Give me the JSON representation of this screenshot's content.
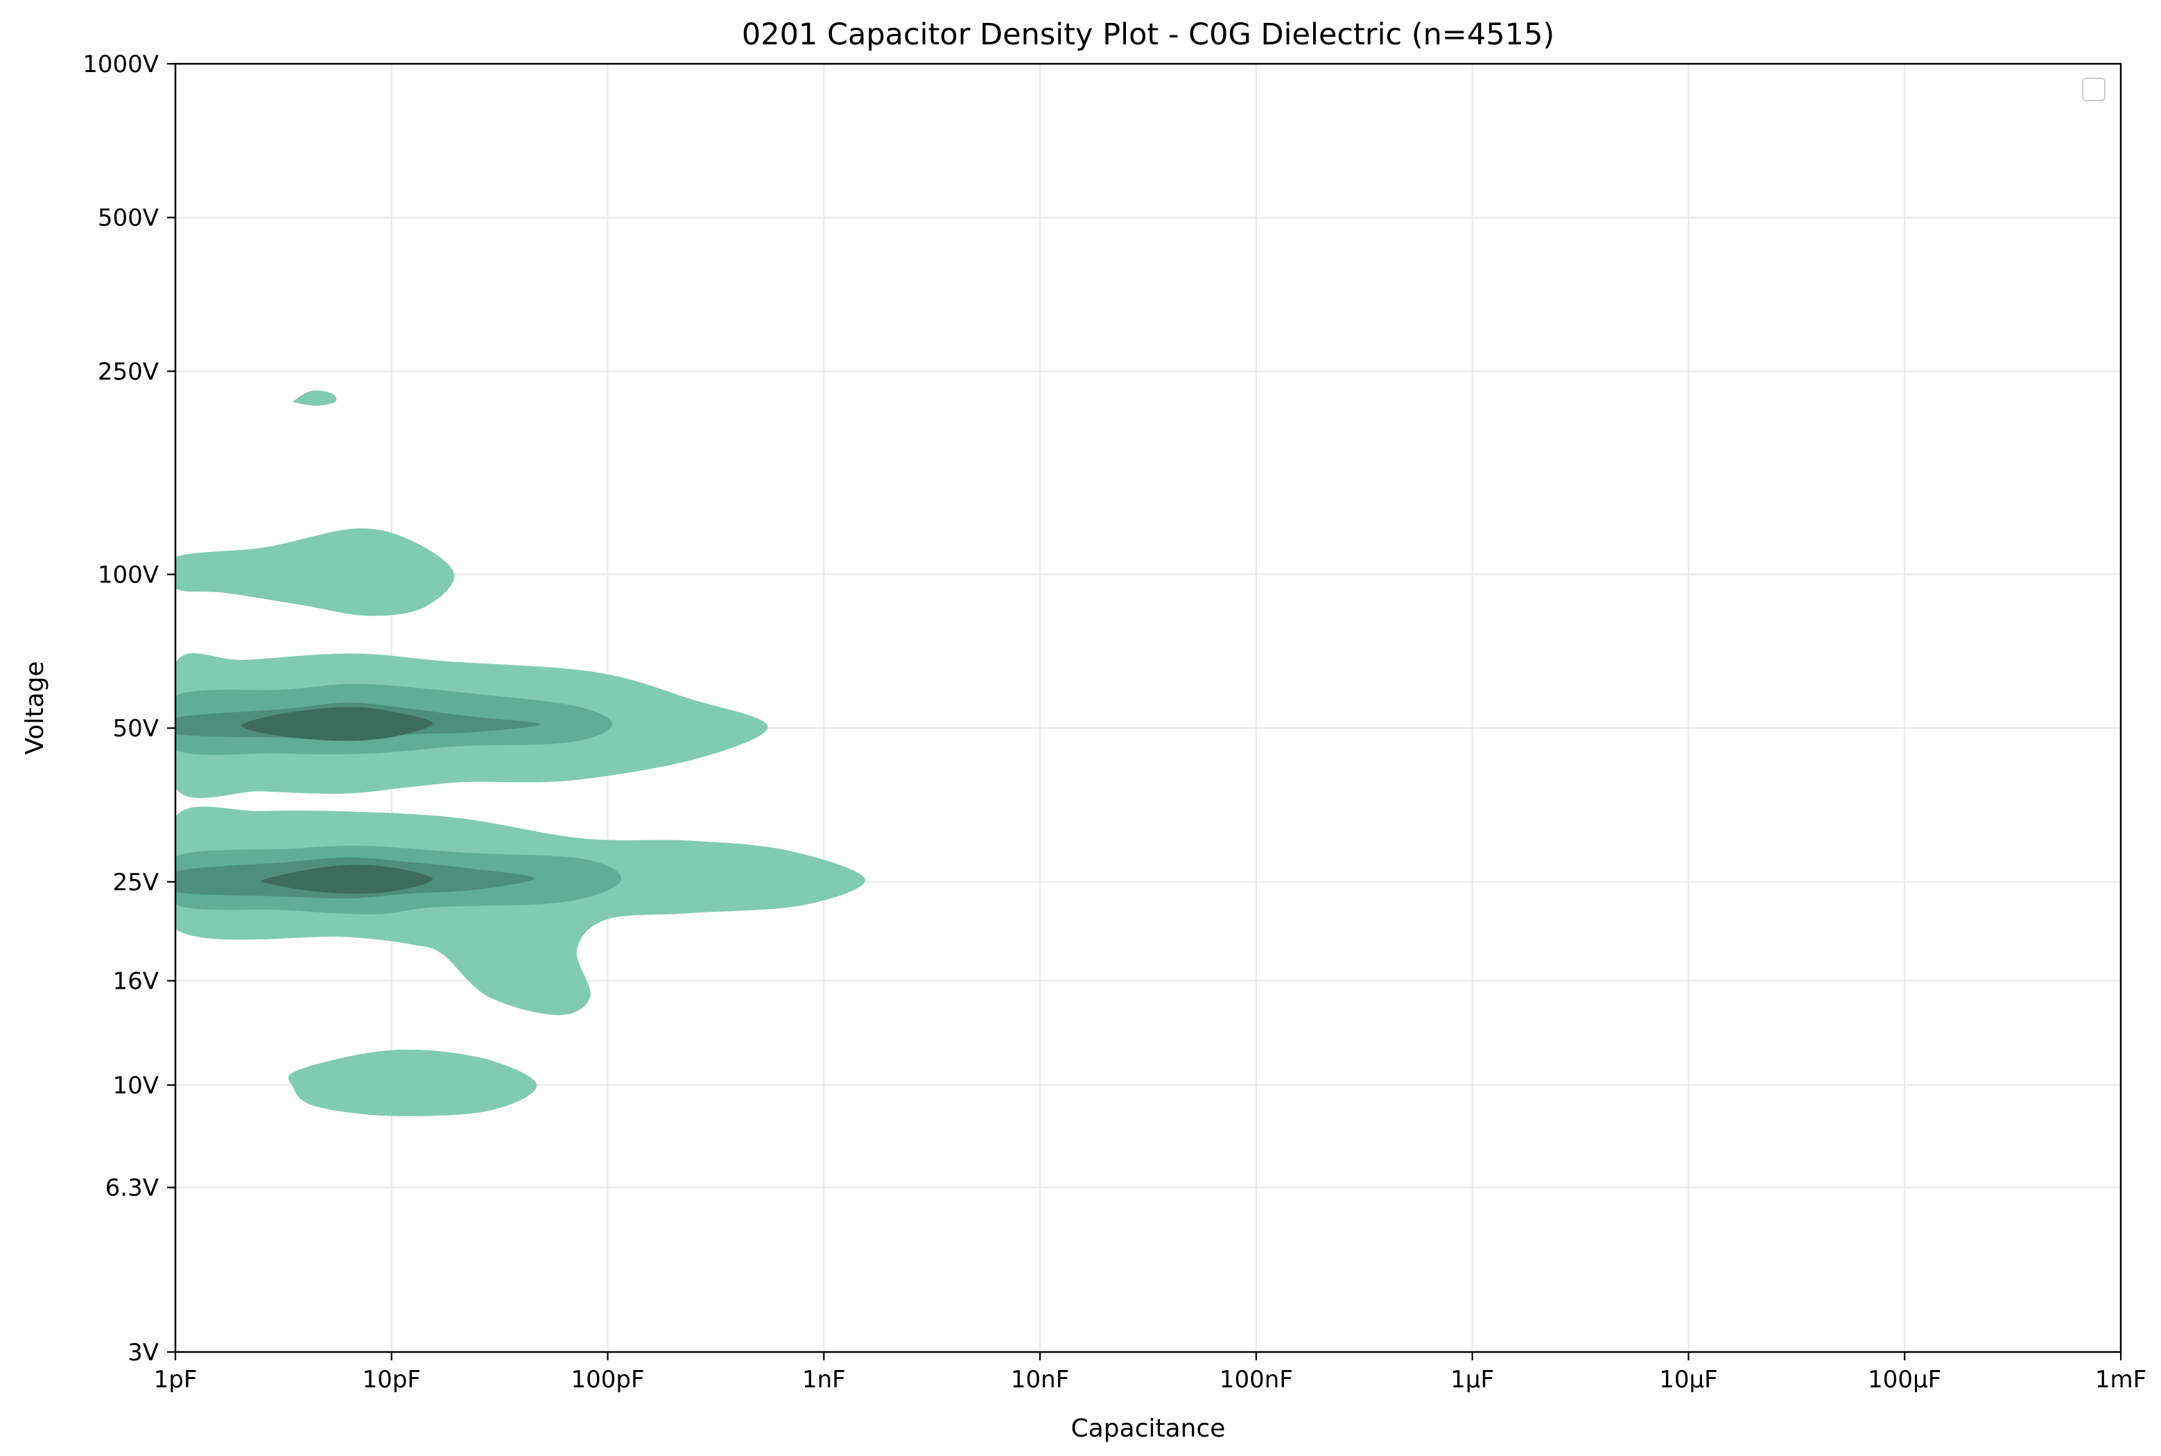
{
  "chart_data": {
    "type": "density-contour",
    "title": "0201 Capacitor Density Plot - C0G Dielectric (n=4515)",
    "xlabel": "Capacitance",
    "ylabel": "Voltage",
    "x_scale": "log",
    "y_scale": "log",
    "xlim_farads": [
      1e-12,
      0.001
    ],
    "ylim_volts": [
      3,
      1000
    ],
    "x_ticks": [
      {
        "value": 1e-12,
        "label": "1pF"
      },
      {
        "value": 1e-11,
        "label": "10pF"
      },
      {
        "value": 1e-10,
        "label": "100pF"
      },
      {
        "value": 1e-09,
        "label": "1nF"
      },
      {
        "value": 1e-08,
        "label": "10nF"
      },
      {
        "value": 1e-07,
        "label": "100nF"
      },
      {
        "value": 1e-06,
        "label": "1µF"
      },
      {
        "value": 1e-05,
        "label": "10µF"
      },
      {
        "value": 0.0001,
        "label": "100µF"
      },
      {
        "value": 0.001,
        "label": "1mF"
      }
    ],
    "y_ticks": [
      {
        "value": 3,
        "label": "3V"
      },
      {
        "value": 6.3,
        "label": "6.3V"
      },
      {
        "value": 10,
        "label": "10V"
      },
      {
        "value": 16,
        "label": "16V"
      },
      {
        "value": 25,
        "label": "25V"
      },
      {
        "value": 50,
        "label": "50V"
      },
      {
        "value": 100,
        "label": "100V"
      },
      {
        "value": 250,
        "label": "250V"
      },
      {
        "value": 500,
        "label": "500V"
      },
      {
        "value": 1000,
        "label": "1000V"
      }
    ],
    "grid": true,
    "legend": {
      "placement": "top-right",
      "entries": []
    },
    "density_levels": [
      {
        "level": 1,
        "color": "#80cbb2"
      },
      {
        "level": 2,
        "color": "#5fae95"
      },
      {
        "level": 3,
        "color": "#4e8f7b"
      },
      {
        "level": 4,
        "color": "#3d6b5c"
      }
    ],
    "density_regions": [
      {
        "level": 1,
        "name": "200V cluster",
        "points": [
          [
            3.6e-12,
            220
          ],
          [
            4.3e-12,
            229
          ],
          [
            5.3e-12,
            226
          ],
          [
            5.5e-12,
            218
          ],
          [
            4.5e-12,
            214
          ],
          [
            3.6e-12,
            217
          ]
        ]
      },
      {
        "level": 1,
        "name": "100V cluster",
        "points": [
          [
            1e-12,
            108
          ],
          [
            2.6e-12,
            113
          ],
          [
            6.9e-12,
            123
          ],
          [
            1.26e-11,
            116
          ],
          [
            1.95e-11,
            100
          ],
          [
            1.4e-11,
            86
          ],
          [
            7.7e-12,
            83
          ],
          [
            3.9e-12,
            87
          ],
          [
            1.7e-12,
            92
          ],
          [
            1e-12,
            94
          ]
        ]
      },
      {
        "level": 1,
        "name": "50V band",
        "points": [
          [
            1e-12,
            67
          ],
          [
            2.1e-12,
            68
          ],
          [
            6.6e-12,
            70
          ],
          [
            1.8e-11,
            67.6
          ],
          [
            8.7e-11,
            64.4
          ],
          [
            2.42e-10,
            57
          ],
          [
            5.5e-10,
            50.4
          ],
          [
            2.6e-10,
            43.6
          ],
          [
            6.8e-11,
            39.5
          ],
          [
            2.2e-11,
            39.2
          ],
          [
            1.2e-11,
            38.3
          ],
          [
            6e-12,
            37.2
          ],
          [
            2.5e-12,
            37.6
          ],
          [
            1e-12,
            38.2
          ]
        ]
      },
      {
        "level": 1,
        "name": "25V band",
        "points": [
          [
            1e-12,
            33.5
          ],
          [
            2.5e-12,
            34.4
          ],
          [
            6.8e-12,
            34.3
          ],
          [
            2.1e-11,
            33.3
          ],
          [
            7.6e-11,
            30.4
          ],
          [
            2.4e-10,
            30.1
          ],
          [
            6.8e-10,
            28.8
          ],
          [
            1.55e-09,
            25.3
          ],
          [
            8e-10,
            22.5
          ],
          [
            2.4e-10,
            21.7
          ],
          [
            9.9e-11,
            21.1
          ],
          [
            7.2e-11,
            18.4
          ],
          [
            8.3e-11,
            14.9
          ],
          [
            5.9e-11,
            13.7
          ],
          [
            2.8e-11,
            14.9
          ],
          [
            1.73e-11,
            18
          ],
          [
            1.28e-11,
            18.8
          ],
          [
            6.1e-12,
            19.5
          ],
          [
            1e-12,
            20.2
          ]
        ]
      },
      {
        "level": 1,
        "name": "10V cluster",
        "points": [
          [
            3.7e-12,
            10.7
          ],
          [
            9.9e-12,
            11.7
          ],
          [
            2.6e-11,
            11.3
          ],
          [
            4.7e-11,
            10
          ],
          [
            2.8e-11,
            8.9
          ],
          [
            9.9e-12,
            8.7
          ],
          [
            4.4e-12,
            9.1
          ],
          [
            3.5e-12,
            9.9
          ]
        ]
      },
      {
        "level": 2,
        "name": "50V mid",
        "points": [
          [
            1e-12,
            57.8
          ],
          [
            3.2e-12,
            59.5
          ],
          [
            7.4e-12,
            61
          ],
          [
            2.4e-11,
            58.4
          ],
          [
            7.1e-11,
            55.2
          ],
          [
            1.05e-10,
            50.8
          ],
          [
            6.7e-11,
            46.9
          ],
          [
            2.1e-11,
            46.1
          ],
          [
            8e-12,
            44.6
          ],
          [
            2.9e-12,
            44.6
          ],
          [
            1e-12,
            45.4
          ]
        ]
      },
      {
        "level": 2,
        "name": "25V mid",
        "points": [
          [
            1e-12,
            28
          ],
          [
            3.3e-12,
            29
          ],
          [
            7.5e-12,
            29.4
          ],
          [
            2.2e-11,
            28.5
          ],
          [
            7.8e-11,
            27.7
          ],
          [
            1.15e-10,
            25.1
          ],
          [
            6.2e-11,
            22.8
          ],
          [
            1.6e-11,
            22.3
          ],
          [
            8.3e-12,
            21.6
          ],
          [
            3.2e-12,
            22
          ],
          [
            1e-12,
            22.6
          ]
        ]
      },
      {
        "level": 3,
        "name": "50V inner",
        "points": [
          [
            1e-12,
            52.4
          ],
          [
            3.2e-12,
            54.5
          ],
          [
            6.4e-12,
            56.1
          ],
          [
            1.25e-11,
            54.5
          ],
          [
            2.4e-11,
            52.6
          ],
          [
            4.9e-11,
            50.9
          ],
          [
            2.4e-11,
            49.1
          ],
          [
            1.2e-11,
            48.6
          ],
          [
            6.4e-12,
            47.7
          ],
          [
            3.2e-12,
            47.9
          ],
          [
            1e-12,
            48.7
          ]
        ]
      },
      {
        "level": 3,
        "name": "25V inner",
        "points": [
          [
            1e-12,
            26.2
          ],
          [
            3.2e-12,
            27.3
          ],
          [
            6.4e-12,
            27.9
          ],
          [
            1.25e-11,
            27.3
          ],
          [
            2.4e-11,
            26.5
          ],
          [
            4.6e-11,
            25.4
          ],
          [
            2.4e-11,
            24.1
          ],
          [
            1.2e-11,
            23.7
          ],
          [
            6.4e-12,
            23.2
          ],
          [
            3.2e-12,
            23.4
          ],
          [
            1e-12,
            23.9
          ]
        ]
      },
      {
        "level": 4,
        "name": "50V core",
        "points": [
          [
            2.1e-12,
            51.2
          ],
          [
            3.4e-12,
            53.7
          ],
          [
            6.4e-12,
            55
          ],
          [
            1e-11,
            53.9
          ],
          [
            1.55e-11,
            51.2
          ],
          [
            1.1e-11,
            48.4
          ],
          [
            6.5e-12,
            47.2
          ],
          [
            3.5e-12,
            47.9
          ],
          [
            2.2e-12,
            49.6
          ]
        ]
      },
      {
        "level": 4,
        "name": "25V core",
        "points": [
          [
            2.6e-12,
            25.3
          ],
          [
            4.3e-12,
            26.5
          ],
          [
            7e-12,
            27
          ],
          [
            1.1e-11,
            26.5
          ],
          [
            1.55e-11,
            25.3
          ],
          [
            1.1e-11,
            24.1
          ],
          [
            7e-12,
            23.7
          ],
          [
            4.2e-12,
            24
          ],
          [
            2.7e-12,
            24.8
          ]
        ]
      }
    ]
  }
}
